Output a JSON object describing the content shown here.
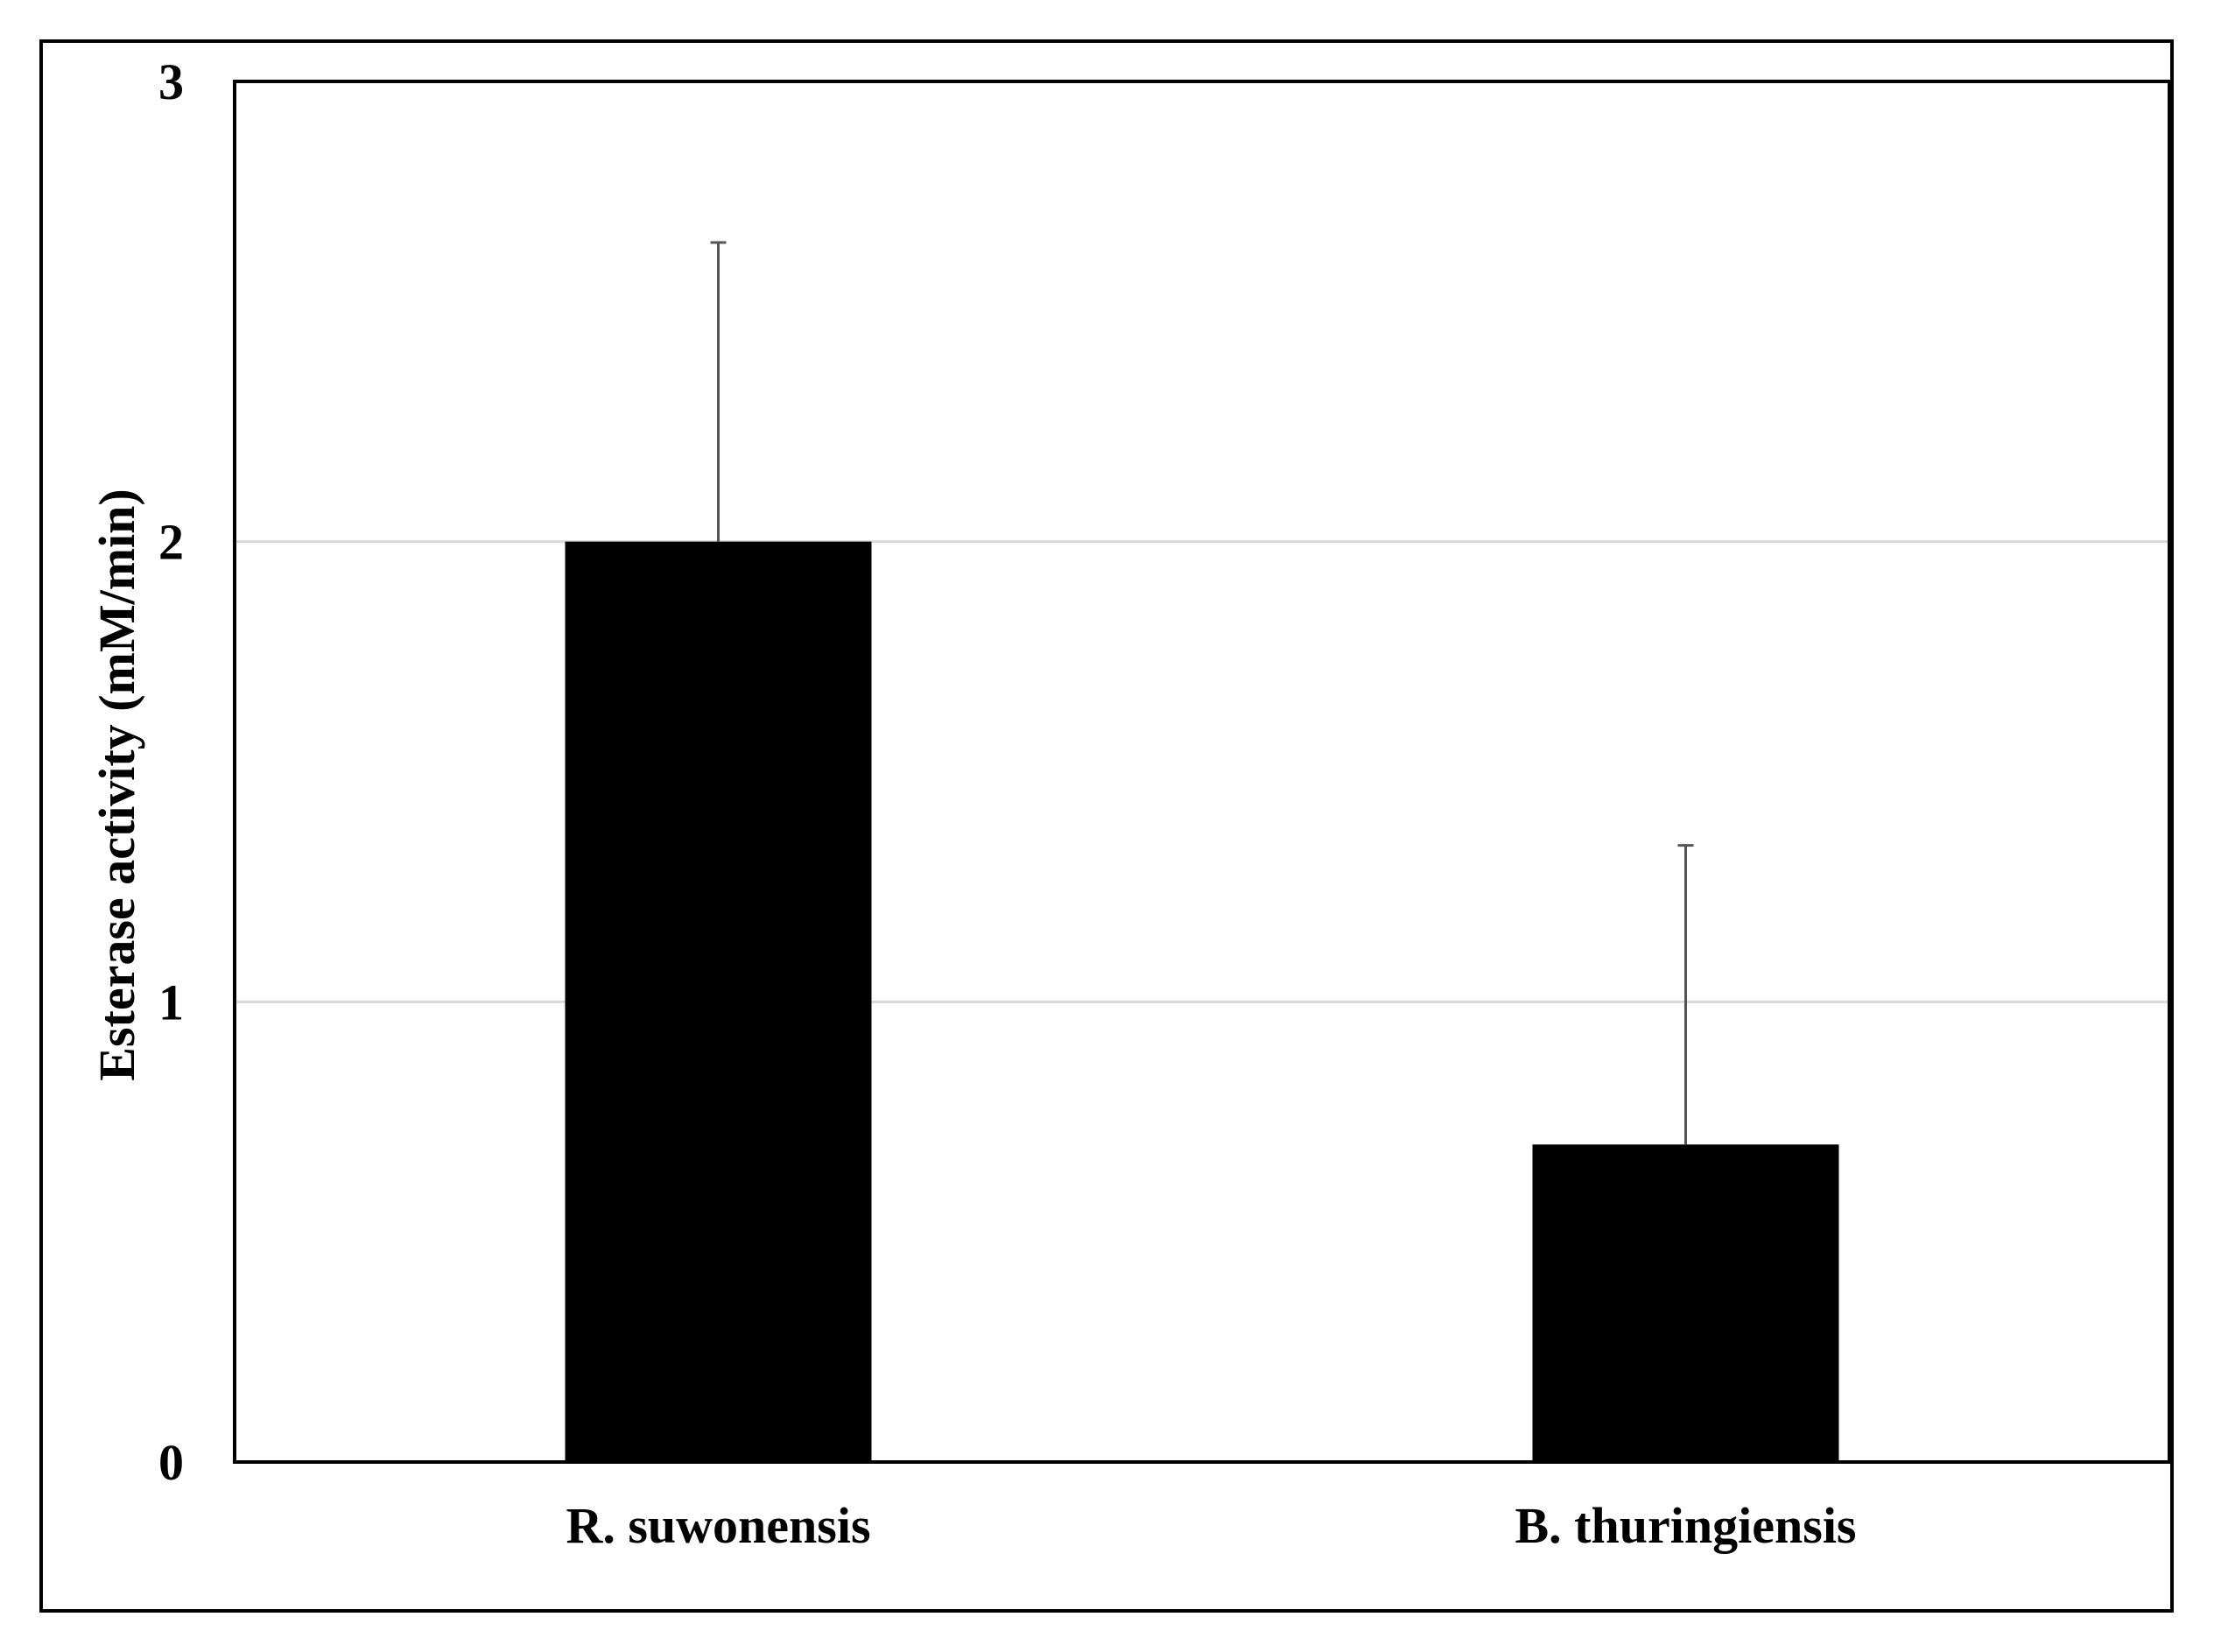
{
  "chart_data": {
    "type": "bar",
    "title": "",
    "xlabel": "",
    "ylabel": "Esterase activity (mM/min)",
    "categories": [
      "R. suwonensis",
      "B. thuringiensis"
    ],
    "values": [
      2.0,
      0.69
    ],
    "error_plus": [
      0.65,
      0.65
    ],
    "ylim": [
      0,
      3
    ],
    "yticks": [
      0,
      1,
      2,
      3
    ],
    "ytick_labels": [
      "0",
      "1",
      "2",
      "3"
    ],
    "grid": true,
    "legend": "none",
    "colors": {
      "bar": "#000000",
      "error_bar": "#555555",
      "grid": "#d9d9d9",
      "frame": "#000000"
    }
  }
}
